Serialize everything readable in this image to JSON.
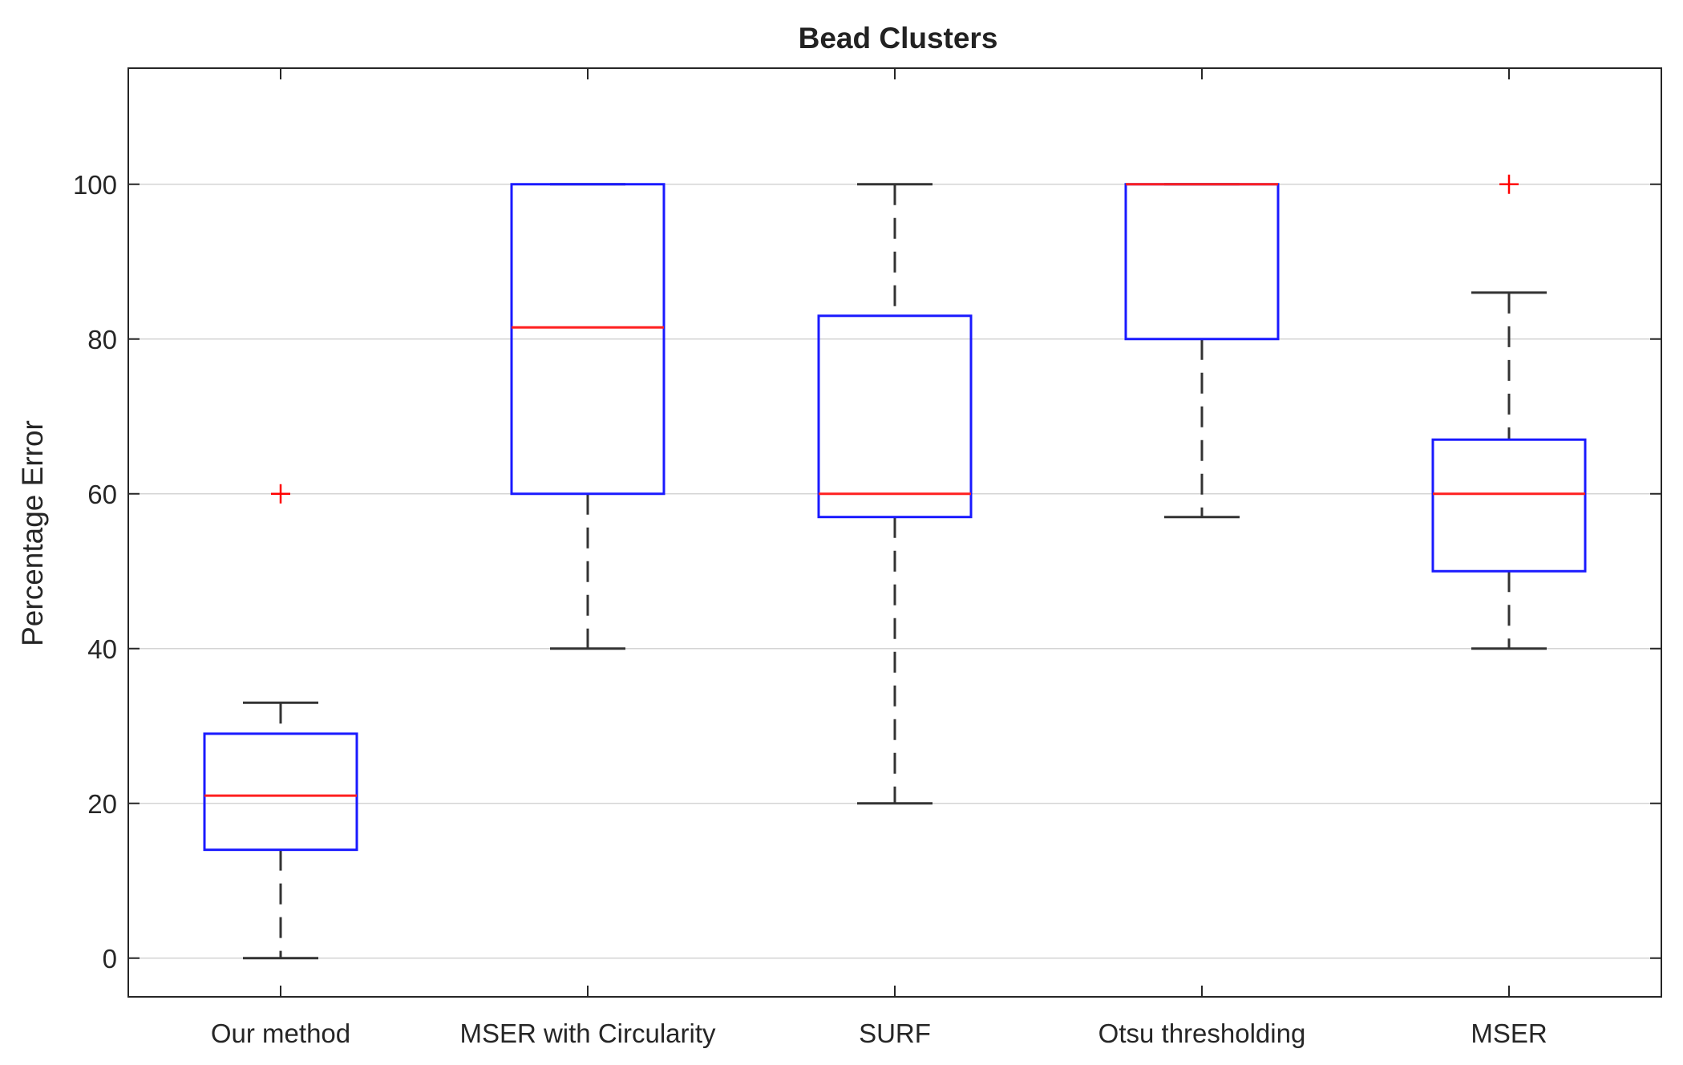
{
  "chart_data": {
    "type": "boxplot",
    "title": "Bead Clusters",
    "xlabel": "",
    "ylabel": "Percentage Error",
    "ylim": [
      -5,
      115
    ],
    "yticks": [
      0,
      20,
      40,
      60,
      80,
      100
    ],
    "grid": "horizontal",
    "colors": {
      "box": "#1a1aff",
      "median": "#ff2020",
      "whisker": "#333333",
      "outlier": "#ff0000",
      "grid": "#d4d4d4",
      "axis": "#262626"
    },
    "categories": [
      "Our method",
      "MSER with Circularity",
      "SURF",
      "Otsu thresholding",
      "MSER"
    ],
    "boxes": [
      {
        "label": "Our method",
        "whisker_low": 0,
        "q1": 14,
        "median": 21,
        "q3": 29,
        "whisker_high": 33,
        "outliers": [
          60
        ]
      },
      {
        "label": "MSER with Circularity",
        "whisker_low": 40,
        "q1": 60,
        "median": 81.5,
        "q3": 100,
        "whisker_high": 100,
        "outliers": []
      },
      {
        "label": "SURF",
        "whisker_low": 20,
        "q1": 57,
        "median": 60,
        "q3": 83,
        "whisker_high": 100,
        "outliers": []
      },
      {
        "label": "Otsu thresholding",
        "whisker_low": 57,
        "q1": 80,
        "median": 100,
        "q3": 100,
        "whisker_high": 100,
        "outliers": []
      },
      {
        "label": "MSER",
        "whisker_low": 40,
        "q1": 50,
        "median": 60,
        "q3": 67,
        "whisker_high": 86,
        "outliers": [
          100
        ]
      }
    ]
  }
}
